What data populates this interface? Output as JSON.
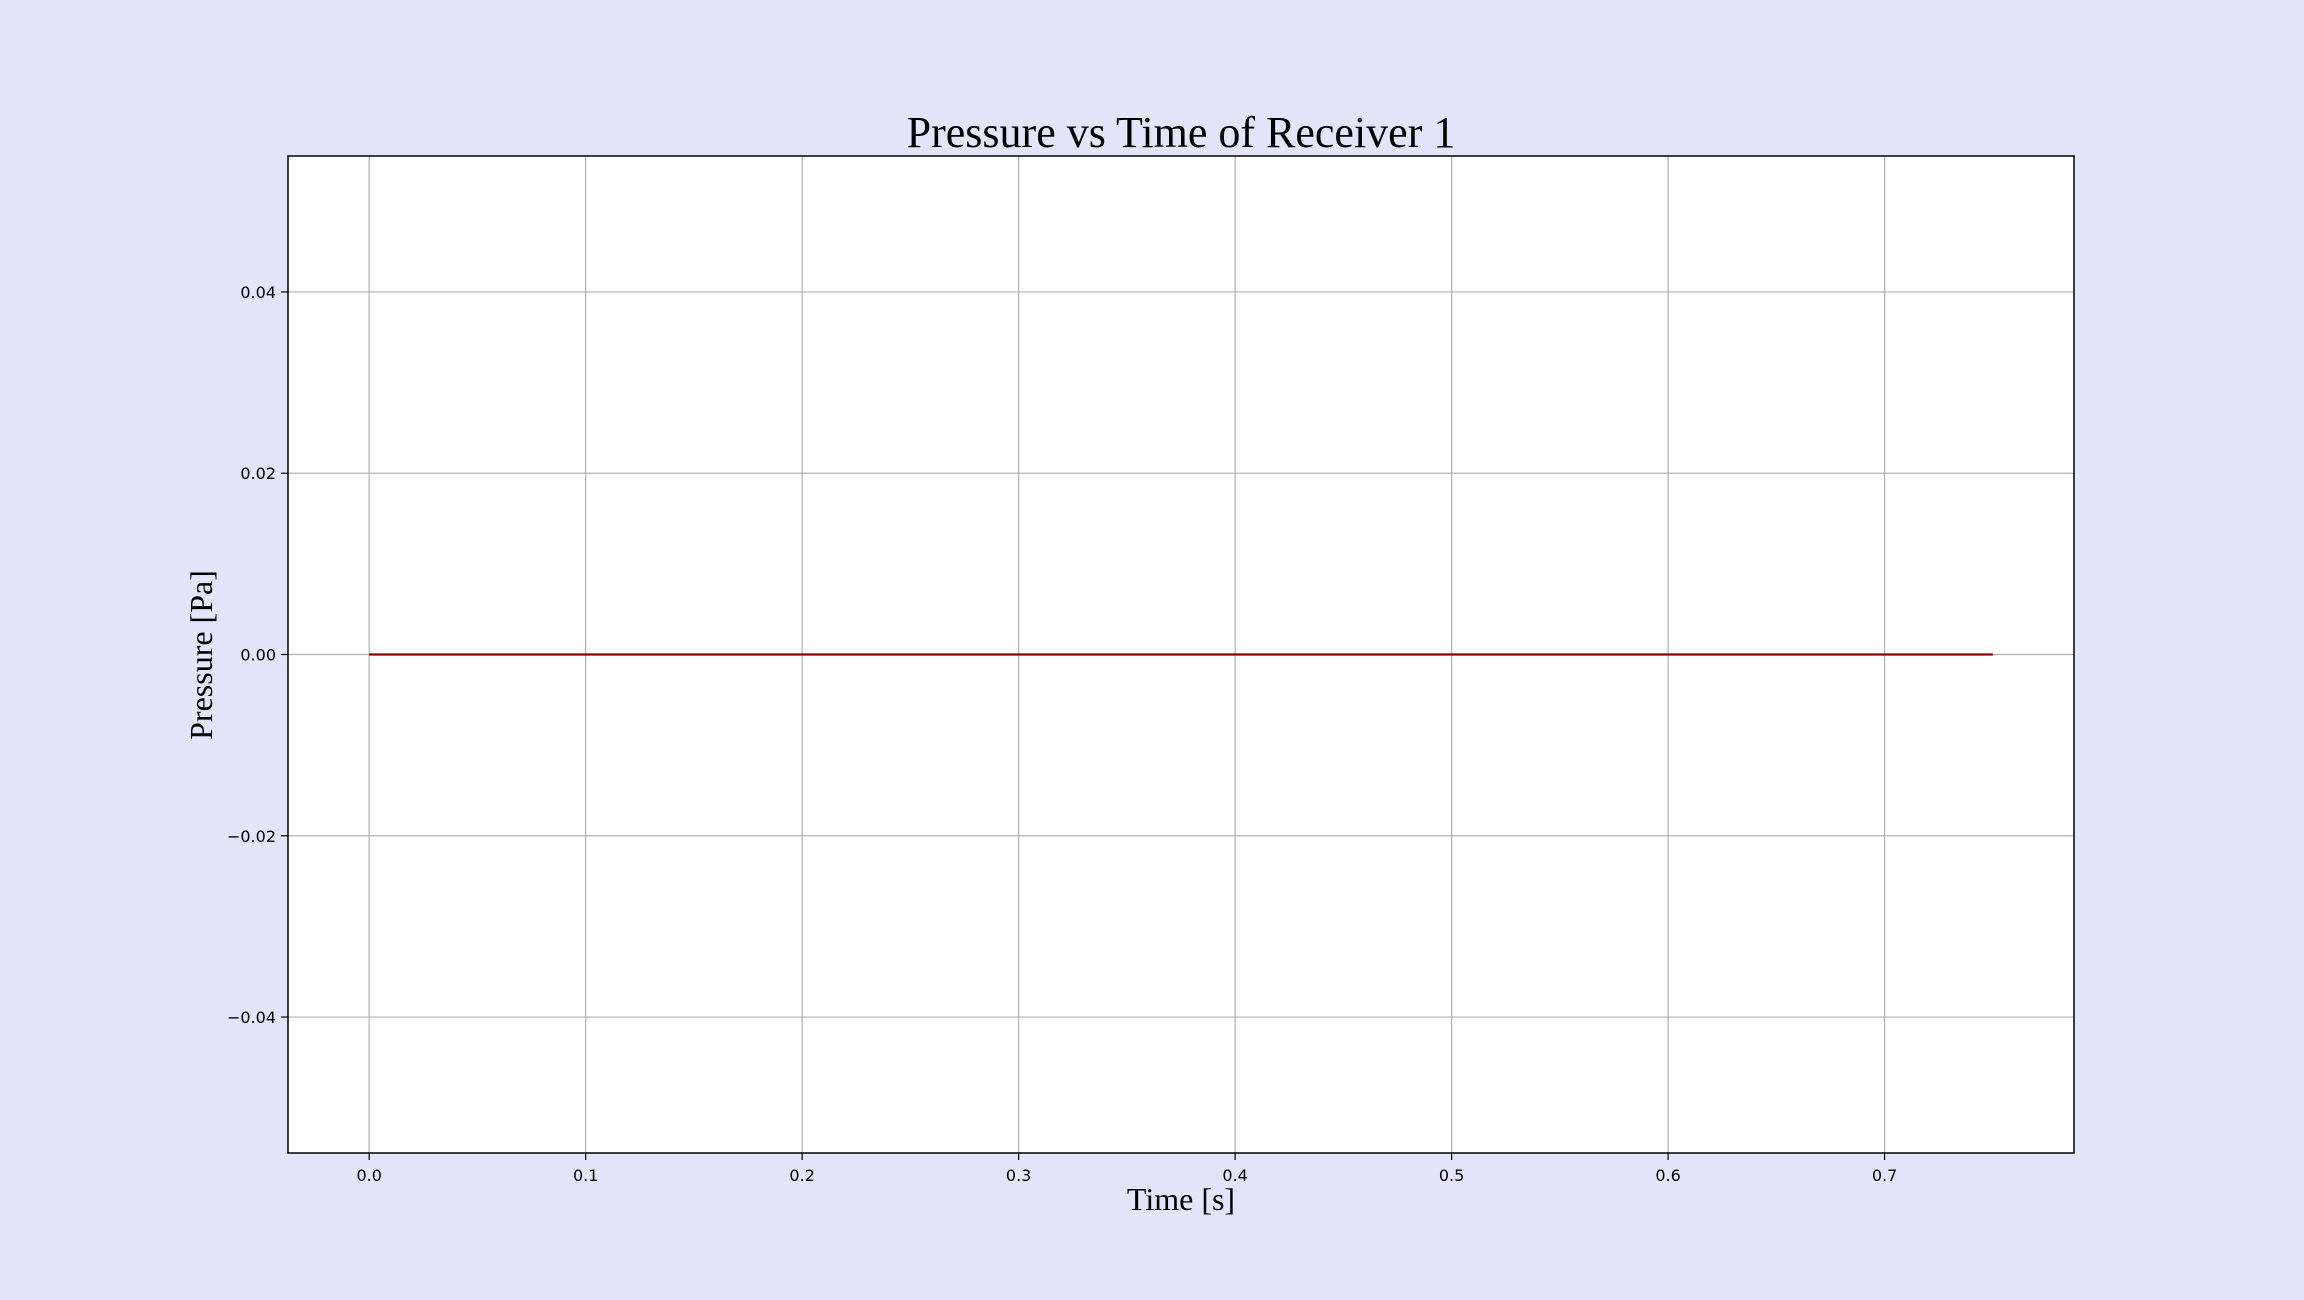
{
  "chart_data": {
    "type": "line",
    "title": "Pressure vs Time of Receiver 1",
    "xlabel": "Time [s]",
    "ylabel": "Pressure [Pa]",
    "xlim": [
      -0.0375,
      0.7875
    ],
    "ylim": [
      -0.055,
      0.055
    ],
    "x_ticks": [
      0.0,
      0.1,
      0.2,
      0.3,
      0.4,
      0.5,
      0.6,
      0.7
    ],
    "x_tick_labels": [
      "0.0",
      "0.1",
      "0.2",
      "0.3",
      "0.4",
      "0.5",
      "0.6",
      "0.7"
    ],
    "y_ticks": [
      -0.04,
      -0.02,
      0.0,
      0.02,
      0.04
    ],
    "y_tick_labels": [
      "−0.04",
      "−0.02",
      "0.00",
      "0.02",
      "0.04"
    ],
    "grid": true,
    "series": [
      {
        "color": "#8b0000",
        "x": [
          0.0,
          0.75
        ],
        "y": [
          0.0,
          0.0
        ]
      }
    ]
  },
  "colors": {
    "background": "#e4e4f8",
    "plot_area": "#ffffff",
    "grid": "#b0b0b0",
    "axes": "#000000"
  }
}
